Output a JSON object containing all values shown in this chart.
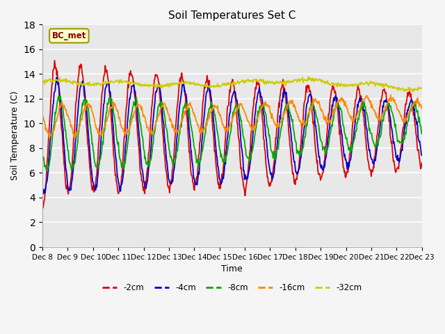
{
  "title": "Soil Temperatures Set C",
  "xlabel": "Time",
  "ylabel": "Soil Temperature (C)",
  "ylim": [
    0,
    18
  ],
  "yticks": [
    0,
    2,
    4,
    6,
    8,
    10,
    12,
    14,
    16,
    18
  ],
  "annotation": "BC_met",
  "fig_facecolor": "#f5f5f5",
  "plot_facecolor": "#e8e8e8",
  "line_colors": {
    "-2cm": "#dd0000",
    "-4cm": "#0000cc",
    "-8cm": "#00aa00",
    "-16cm": "#ff8800",
    "-32cm": "#cccc00"
  },
  "legend_labels": [
    "-2cm",
    "-4cm",
    "-8cm",
    "-16cm",
    "-32cm"
  ],
  "x_tick_labels": [
    "Dec 8",
    "Dec 9",
    "Dec 10",
    "Dec 11",
    "Dec 12",
    "Dec 13",
    "Dec 14",
    "Dec 15",
    "Dec 16",
    "Dec 17",
    "Dec 18",
    "Dec 19",
    "Dec 20",
    "Dec 21",
    "Dec 22",
    "Dec 23"
  ]
}
